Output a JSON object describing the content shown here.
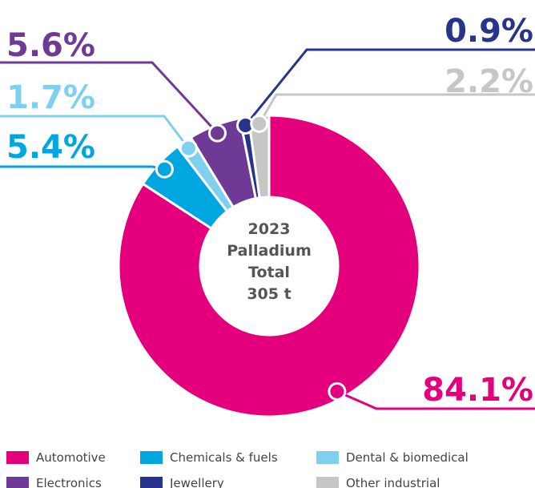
{
  "chart_data": {
    "type": "pie",
    "donut": true,
    "center_text": [
      "2023",
      "Palladium",
      "Total",
      "305 t"
    ],
    "categories": [
      "Automotive",
      "Chemicals & fuels",
      "Dental & biomedical",
      "Electronics",
      "Jewellery",
      "Other industrial"
    ],
    "values": [
      84.1,
      5.4,
      1.7,
      5.6,
      0.9,
      2.2
    ],
    "value_labels": [
      "84.1%",
      "5.4%",
      "1.7%",
      "5.6%",
      "0.9%",
      "2.2%"
    ],
    "colors": [
      "#e4007c",
      "#00a6e0",
      "#7fcfef",
      "#6f3996",
      "#27348b",
      "#c6c6c6"
    ]
  }
}
